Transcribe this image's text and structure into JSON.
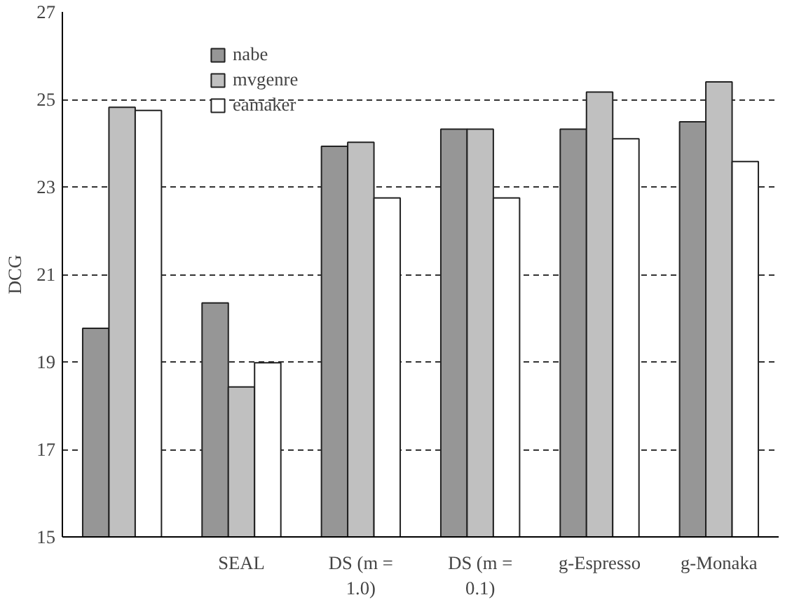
{
  "chart_data": {
    "type": "bar",
    "ylabel": "DCG",
    "categories": [
      null,
      "SEAL",
      "DS (m = 1.0)",
      "DS (m = 0.1)",
      "g-Espresso",
      "g-Monaka"
    ],
    "series": [
      {
        "name": "nabe",
        "color": "#969696",
        "values": [
          19.77,
          20.35,
          23.93,
          24.32,
          24.32,
          24.49
        ]
      },
      {
        "name": "mvgenre",
        "color": "#c0c0c0",
        "values": [
          24.82,
          18.43,
          24.02,
          24.32,
          25.17,
          25.4
        ]
      },
      {
        "name": "eamaker",
        "color": "#ffffff",
        "values": [
          24.75,
          18.98,
          22.75,
          22.75,
          24.1,
          23.58
        ]
      }
    ],
    "ylim": [
      15,
      27
    ],
    "yticks": [
      15,
      17,
      19,
      21,
      23,
      25,
      27
    ],
    "grid": "y",
    "legend": "top left"
  }
}
